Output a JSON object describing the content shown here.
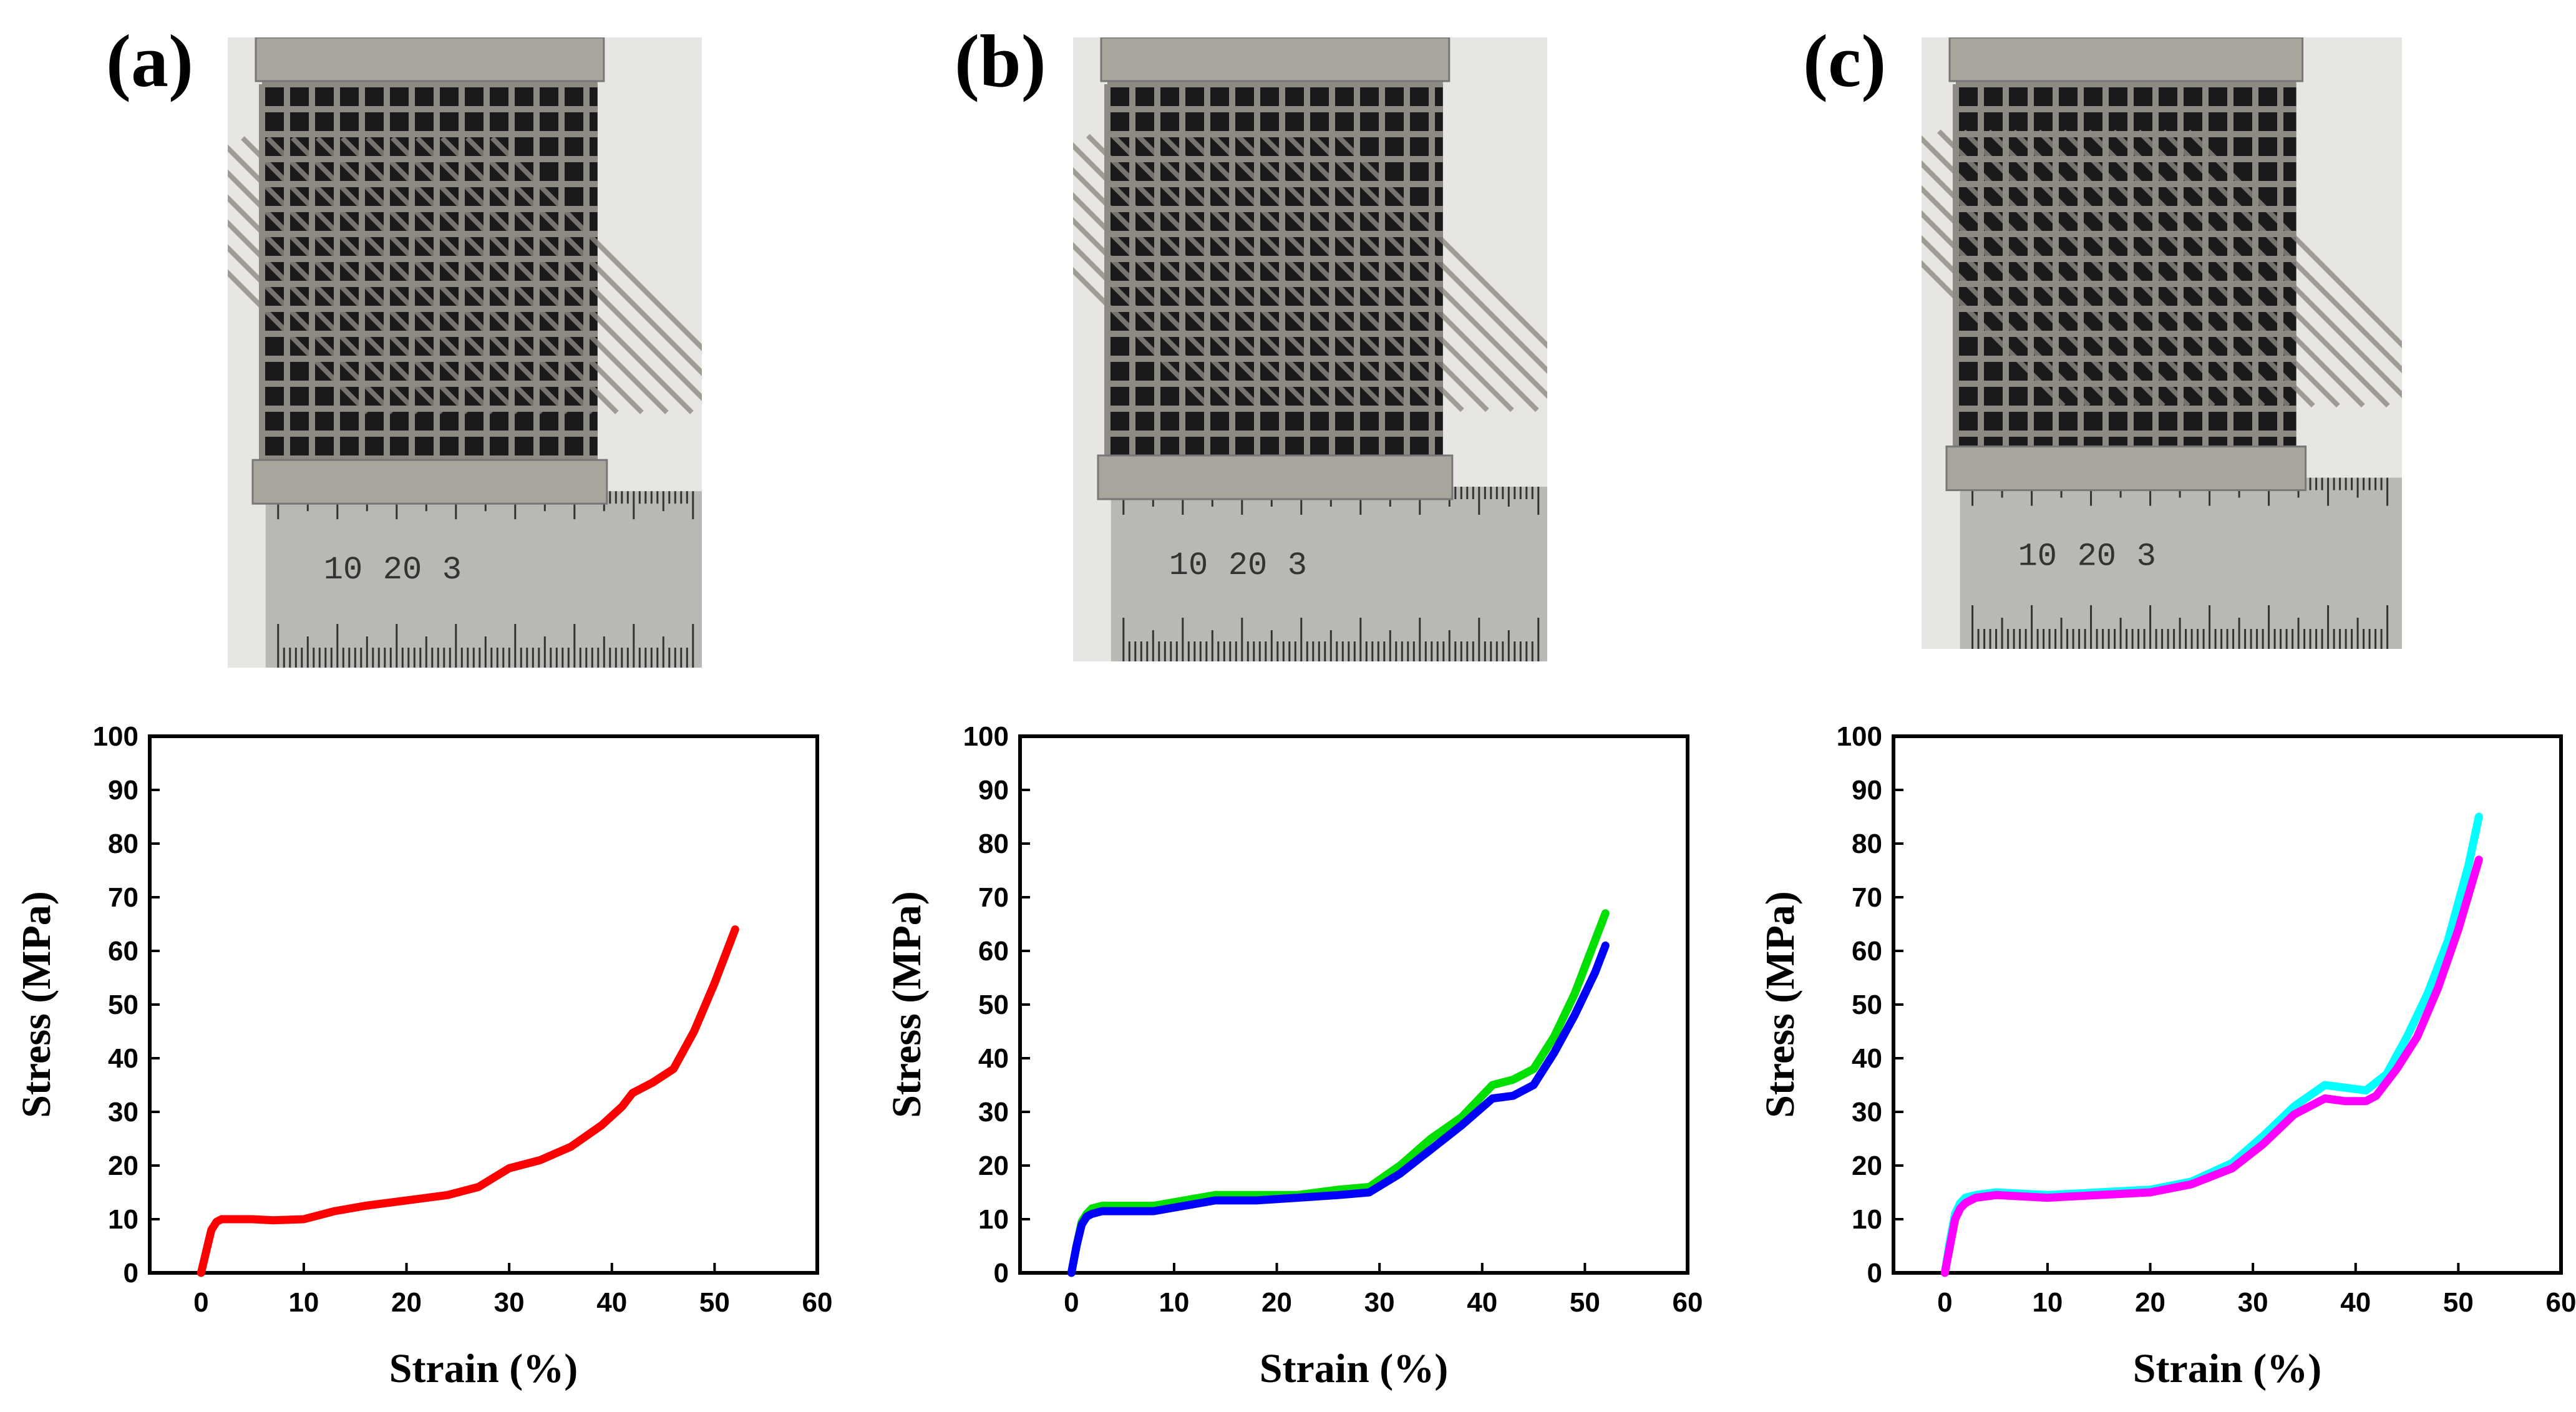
{
  "panels": [
    {
      "label": "(a)",
      "photo": {
        "ruler_labels": [
          "10",
          "20",
          "3"
        ],
        "colors": {
          "plate": "#a8a59c",
          "lattice": "#8d8a83",
          "void": "#1a1a1a",
          "ruler": "#b8b8b4",
          "background": "#e8e6e2"
        }
      }
    },
    {
      "label": "(b)",
      "photo": {
        "ruler_labels": [
          "10",
          "20",
          "3"
        ],
        "colors": {
          "plate": "#a8a59c",
          "lattice": "#8d8a83",
          "void": "#1a1a1a",
          "ruler": "#b8b8b4",
          "background": "#e8e6e2"
        }
      }
    },
    {
      "label": "(c)",
      "photo": {
        "ruler_labels": [
          "10",
          "20",
          "3"
        ],
        "colors": {
          "plate": "#a8a59c",
          "lattice": "#8d8a83",
          "void": "#1a1a1a",
          "ruler": "#b8b8b4",
          "background": "#e8e6e2"
        }
      }
    }
  ],
  "chart_data": [
    {
      "type": "line",
      "xlabel": "Strain (%)",
      "ylabel": "Stress (MPa)",
      "xlim": [
        -5,
        60
      ],
      "ylim": [
        0,
        100
      ],
      "xticks": [
        0,
        10,
        20,
        30,
        40,
        50,
        60
      ],
      "yticks": [
        0,
        10,
        20,
        30,
        40,
        50,
        60,
        70,
        80,
        90,
        100
      ],
      "series": [
        {
          "name": "red",
          "color": "#ff0000",
          "x": [
            0,
            0.5,
            1,
            1.5,
            2,
            3,
            5,
            7,
            10,
            13,
            16,
            20,
            24,
            27,
            30,
            33,
            36,
            39,
            41,
            42,
            44,
            46,
            48,
            50,
            52
          ],
          "y": [
            0,
            4,
            8,
            9.5,
            10,
            10,
            10,
            9.8,
            10,
            11.5,
            12.5,
            13.5,
            14.5,
            16,
            19.5,
            21,
            23.5,
            27.5,
            31,
            33.5,
            35.5,
            38,
            45,
            54,
            64
          ]
        }
      ]
    },
    {
      "type": "line",
      "xlabel": "Strain (%)",
      "ylabel": "Stress (MPa)",
      "xlim": [
        -5,
        60
      ],
      "ylim": [
        0,
        100
      ],
      "xticks": [
        0,
        10,
        20,
        30,
        40,
        50,
        60
      ],
      "yticks": [
        0,
        10,
        20,
        30,
        40,
        50,
        60,
        70,
        80,
        90,
        100
      ],
      "series": [
        {
          "name": "green",
          "color": "#00e000",
          "x": [
            0,
            0.5,
            1,
            1.5,
            2,
            3,
            5,
            8,
            11,
            14,
            18,
            22,
            26,
            29,
            32,
            35,
            38,
            41,
            43,
            45,
            47,
            49,
            51,
            52
          ],
          "y": [
            0,
            5,
            9.5,
            11,
            12,
            12.5,
            12.5,
            12.5,
            13.5,
            14.5,
            14.5,
            14.5,
            15.5,
            16,
            20,
            25,
            29,
            35,
            36,
            38,
            44,
            52,
            62,
            67
          ]
        },
        {
          "name": "blue",
          "color": "#0000ff",
          "x": [
            0,
            0.5,
            1,
            1.5,
            2,
            3,
            5,
            8,
            11,
            14,
            18,
            22,
            26,
            29,
            32,
            35,
            38,
            41,
            43,
            45,
            47,
            49,
            51,
            52
          ],
          "y": [
            0,
            5,
            9,
            10.5,
            11,
            11.5,
            11.5,
            11.5,
            12.5,
            13.5,
            13.5,
            14,
            14.5,
            15,
            18.5,
            23,
            27.5,
            32.5,
            33,
            35,
            41,
            48,
            56,
            61
          ]
        }
      ]
    },
    {
      "type": "line",
      "xlabel": "Strain (%)",
      "ylabel": "Stress (MPa)",
      "xlim": [
        -5,
        60
      ],
      "ylim": [
        0,
        100
      ],
      "xticks": [
        0,
        10,
        20,
        30,
        40,
        50,
        60
      ],
      "yticks": [
        0,
        10,
        20,
        30,
        40,
        50,
        60,
        70,
        80,
        90,
        100
      ],
      "series": [
        {
          "name": "cyan",
          "color": "#00ffff",
          "x": [
            0,
            0.5,
            1,
            1.5,
            2,
            3,
            5,
            10,
            15,
            20,
            24,
            28,
            31,
            34,
            37,
            39,
            41,
            43,
            45,
            47,
            49,
            51,
            52
          ],
          "y": [
            0,
            6,
            11,
            13,
            14,
            14.5,
            15,
            14.5,
            15,
            15.5,
            17,
            20.5,
            25.5,
            31,
            35,
            34.5,
            34,
            37,
            44,
            52,
            62,
            76,
            85
          ]
        },
        {
          "name": "magenta",
          "color": "#ff00ff",
          "x": [
            0,
            0.5,
            1,
            1.5,
            2,
            3,
            5,
            10,
            15,
            20,
            24,
            28,
            31,
            34,
            37,
            39,
            41,
            42,
            44,
            46,
            48,
            50,
            52
          ],
          "y": [
            0,
            5,
            10,
            12,
            13,
            14,
            14.5,
            14,
            14.5,
            15,
            16.5,
            19.5,
            24,
            29.5,
            32.5,
            32,
            32,
            33,
            38,
            44,
            53,
            64,
            77
          ]
        }
      ]
    }
  ]
}
